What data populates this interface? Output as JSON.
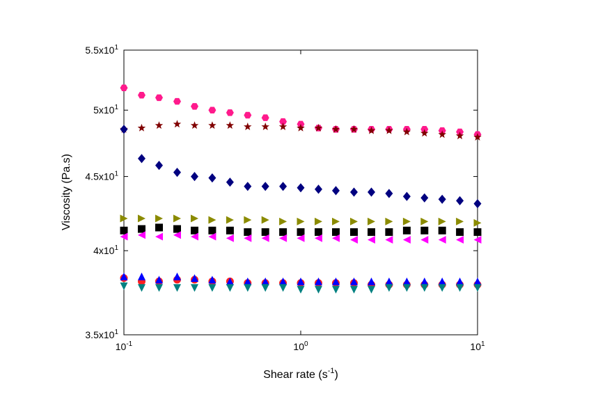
{
  "chart_data": {
    "type": "scatter",
    "ylabel": "Viscosity (Pa.s)",
    "xlabel": [
      "Shear rate (s",
      "-1",
      ")"
    ],
    "xlog": true,
    "ylog": true,
    "xlim": [
      0.1,
      10
    ],
    "ylim": [
      35,
      55
    ],
    "xticks": [
      {
        "value": 0.1,
        "label": "10",
        "sup": "-1"
      },
      {
        "value": 1,
        "label": "10",
        "sup": "0"
      },
      {
        "value": 10,
        "label": "10",
        "sup": "1"
      }
    ],
    "yticks": [
      {
        "value": 35,
        "label": "3.5x10",
        "sup": "1"
      },
      {
        "value": 40,
        "label": "4x10",
        "sup": "1"
      },
      {
        "value": 45,
        "label": "4.5x10",
        "sup": "1"
      },
      {
        "value": 50,
        "label": "5x10",
        "sup": "1"
      },
      {
        "value": 55,
        "label": "5.5x10",
        "sup": "1"
      }
    ],
    "x": [
      0.1,
      0.126,
      0.158,
      0.2,
      0.251,
      0.316,
      0.398,
      0.501,
      0.631,
      0.794,
      1,
      1.26,
      1.58,
      2,
      2.51,
      3.16,
      3.98,
      5.01,
      6.31,
      7.94,
      10
    ],
    "series": [
      {
        "marker": "hexagon",
        "color": "#ff1a8c",
        "values": [
          51.8,
          51.2,
          51.0,
          50.7,
          50.3,
          50.0,
          49.8,
          49.6,
          49.4,
          49.1,
          48.9,
          48.6,
          48.5,
          48.5,
          48.5,
          48.5,
          48.5,
          48.5,
          48.4,
          48.3,
          48.1
        ]
      },
      {
        "marker": "star",
        "color": "#800000",
        "values": [
          48.5,
          48.6,
          48.8,
          48.9,
          48.8,
          48.8,
          48.8,
          48.7,
          48.7,
          48.7,
          48.6,
          48.6,
          48.5,
          48.5,
          48.4,
          48.4,
          48.3,
          48.2,
          48.1,
          48.0,
          47.9
        ]
      },
      {
        "marker": "diamond",
        "color": "#000080",
        "values": [
          48.5,
          46.3,
          45.8,
          45.3,
          45.0,
          44.9,
          44.6,
          44.3,
          44.3,
          44.3,
          44.2,
          44.1,
          44.0,
          43.9,
          43.9,
          43.8,
          43.6,
          43.5,
          43.4,
          43.3,
          43.1
        ]
      },
      {
        "marker": "triangle-right",
        "color": "#8b8b00",
        "values": [
          42.1,
          42.1,
          42.1,
          42.1,
          42.1,
          42.0,
          42.0,
          42.0,
          42.0,
          41.9,
          41.9,
          41.9,
          41.9,
          41.9,
          41.9,
          41.9,
          41.9,
          41.9,
          41.9,
          41.9,
          41.8
        ]
      },
      {
        "marker": "square",
        "color": "#000000",
        "values": [
          41.3,
          41.4,
          41.5,
          41.4,
          41.3,
          41.3,
          41.3,
          41.2,
          41.2,
          41.2,
          41.2,
          41.2,
          41.2,
          41.2,
          41.2,
          41.2,
          41.3,
          41.3,
          41.3,
          41.2,
          41.2
        ]
      },
      {
        "marker": "triangle-left",
        "color": "#ff00ff",
        "values": [
          40.9,
          41.0,
          40.9,
          41.0,
          40.9,
          40.9,
          40.8,
          40.8,
          40.8,
          40.8,
          40.8,
          40.8,
          40.8,
          40.7,
          40.7,
          40.7,
          40.7,
          40.7,
          40.7,
          40.7,
          40.7
        ]
      },
      {
        "marker": "circle",
        "color": "#ff2020",
        "values": [
          38.3,
          38.1,
          38.1,
          38.2,
          38.2,
          38.1,
          38.1,
          38.0,
          38.0,
          38.0,
          38.0,
          38.0,
          38.0,
          38.0,
          37.9,
          37.9,
          37.9,
          37.9,
          37.9,
          37.9,
          37.9
        ]
      },
      {
        "marker": "triangle-up",
        "color": "#0000ff",
        "values": [
          38.4,
          38.4,
          38.2,
          38.4,
          38.3,
          38.2,
          38.1,
          38.1,
          38.1,
          38.1,
          38.1,
          38.1,
          38.1,
          38.1,
          38.1,
          38.1,
          38.1,
          38.1,
          38.1,
          38.1,
          38.1
        ]
      },
      {
        "marker": "triangle-down",
        "color": "#008080",
        "values": [
          37.8,
          37.7,
          37.7,
          37.7,
          37.7,
          37.7,
          37.7,
          37.7,
          37.7,
          37.7,
          37.6,
          37.6,
          37.6,
          37.6,
          37.6,
          37.7,
          37.7,
          37.7,
          37.7,
          37.7,
          37.7
        ]
      }
    ]
  }
}
